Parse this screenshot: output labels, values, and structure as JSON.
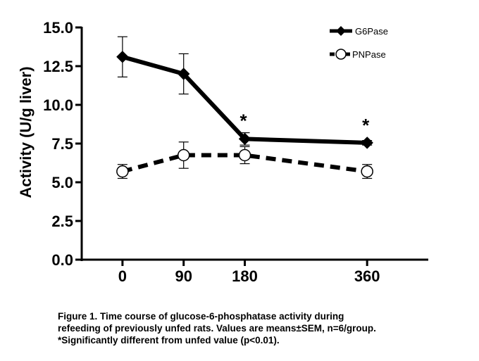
{
  "chart_data": {
    "type": "line",
    "ylabel": "Activity (U/g liver)",
    "xlabel": "",
    "x": [
      0,
      90,
      180,
      360
    ],
    "x_tick_labels": [
      "0",
      "90",
      "180",
      "360"
    ],
    "xlim": [
      -60,
      450
    ],
    "ylim": [
      0,
      15
    ],
    "y_ticks": [
      0,
      2.5,
      5,
      7.5,
      10,
      12.5,
      15
    ],
    "y_tick_labels": [
      "0.0",
      "2.5",
      "5.0",
      "7.5",
      "10.0",
      "12.5",
      "15.0"
    ],
    "grid": false,
    "legend_position": "top-right",
    "series": [
      {
        "name": "G6Pase",
        "values": [
          13.1,
          12.0,
          7.8,
          7.55
        ],
        "errors": [
          1.3,
          1.3,
          0.4,
          0.15
        ],
        "line_style": "solid",
        "marker": "filled-diamond",
        "color": "#000000"
      },
      {
        "name": "PNPase",
        "values": [
          5.7,
          6.75,
          6.75,
          5.7
        ],
        "errors": [
          0.45,
          0.85,
          0.55,
          0.45
        ],
        "line_style": "dashed",
        "marker": "open-circle",
        "color": "#000000"
      }
    ],
    "annotations": [
      {
        "text": "*",
        "x": 180,
        "y": 9.2
      },
      {
        "text": "*",
        "x": 360,
        "y": 8.9
      }
    ]
  },
  "caption": {
    "line1": "Figure 1. Time course of glucose-6-phosphatase activity during",
    "line2": "refeeding of previously unfed rats. Values are means±SEM, n=6/group.",
    "line3": "*Significantly different from unfed value (p<0.01)."
  }
}
